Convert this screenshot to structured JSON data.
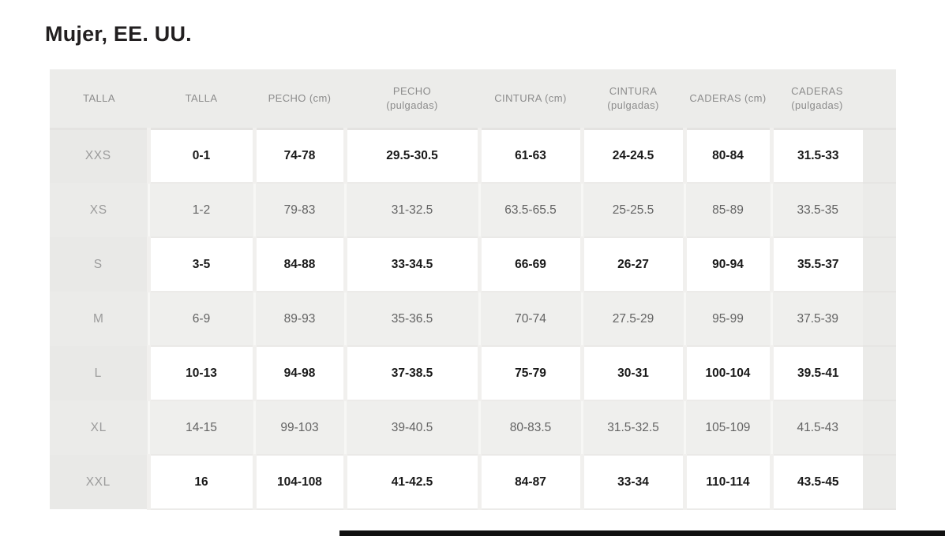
{
  "page": {
    "title": "Mujer, EE. UU."
  },
  "table": {
    "headers": [
      "TALLA",
      "TALLA",
      "PECHO (cm)",
      "PECHO (pulgadas)",
      "CINTURA (cm)",
      "CINTURA (pulgadas)",
      "CADERAS (cm)",
      "CADERAS (pulgadas)"
    ],
    "rows": [
      {
        "size": "XXS",
        "values": [
          "0-1",
          "74-78",
          "29.5-30.5",
          "61-63",
          "24-24.5",
          "80-84",
          "31.5-33"
        ]
      },
      {
        "size": "XS",
        "values": [
          "1-2",
          "79-83",
          "31-32.5",
          "63.5-65.5",
          "25-25.5",
          "85-89",
          "33.5-35"
        ]
      },
      {
        "size": "S",
        "values": [
          "3-5",
          "84-88",
          "33-34.5",
          "66-69",
          "26-27",
          "90-94",
          "35.5-37"
        ]
      },
      {
        "size": "M",
        "values": [
          "6-9",
          "89-93",
          "35-36.5",
          "70-74",
          "27.5-29",
          "95-99",
          "37.5-39"
        ]
      },
      {
        "size": "L",
        "values": [
          "10-13",
          "94-98",
          "37-38.5",
          "75-79",
          "30-31",
          "100-104",
          "39.5-41"
        ]
      },
      {
        "size": "XL",
        "values": [
          "14-15",
          "99-103",
          "39-40.5",
          "80-83.5",
          "31.5-32.5",
          "105-109",
          "41.5-43"
        ]
      },
      {
        "size": "XXL",
        "values": [
          "16",
          "104-108",
          "41-42.5",
          "84-87",
          "33-34",
          "110-114",
          "43.5-45"
        ]
      }
    ]
  },
  "colors": {
    "title_text": "#221f20",
    "header_bg": "#ececea",
    "header_text": "#8c8c8c",
    "gray_row_bg": "#efefed",
    "size_column_bg": "#e9e9e7",
    "size_text": "#9b9b9b",
    "bold_value_text": "#191919",
    "gray_value_text": "#636363",
    "bottom_bar": "#101010"
  }
}
